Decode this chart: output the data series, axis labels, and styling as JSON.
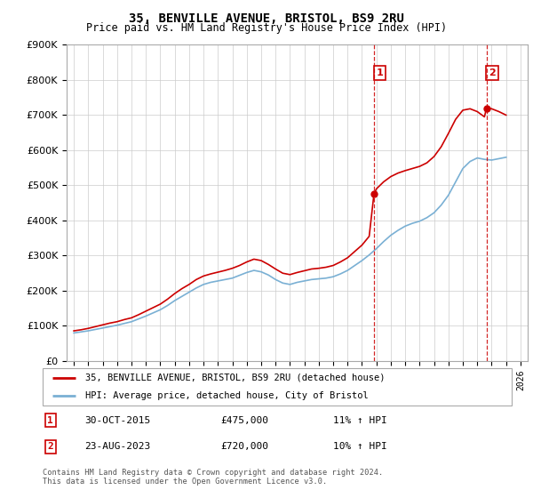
{
  "title": "35, BENVILLE AVENUE, BRISTOL, BS9 2RU",
  "subtitle": "Price paid vs. HM Land Registry's House Price Index (HPI)",
  "footnote": "Contains HM Land Registry data © Crown copyright and database right 2024.\nThis data is licensed under the Open Government Licence v3.0.",
  "legend_line1": "35, BENVILLE AVENUE, BRISTOL, BS9 2RU (detached house)",
  "legend_line2": "HPI: Average price, detached house, City of Bristol",
  "annotation1_label": "1",
  "annotation1_date": "30-OCT-2015",
  "annotation1_price": "£475,000",
  "annotation1_hpi": "11% ↑ HPI",
  "annotation1_year": 2015.83,
  "annotation2_label": "2",
  "annotation2_date": "23-AUG-2023",
  "annotation2_price": "£720,000",
  "annotation2_hpi": "10% ↑ HPI",
  "annotation2_year": 2023.64,
  "red_color": "#cc0000",
  "blue_color": "#7ab0d4",
  "grid_color": "#cccccc",
  "background_color": "#ffffff",
  "ylim": [
    0,
    900000
  ],
  "xlim": [
    1994.5,
    2026.5
  ],
  "hpi_years": [
    1995,
    1995.5,
    1996,
    1996.5,
    1997,
    1997.5,
    1998,
    1998.5,
    1999,
    1999.5,
    2000,
    2000.5,
    2001,
    2001.5,
    2002,
    2002.5,
    2003,
    2003.5,
    2004,
    2004.5,
    2005,
    2005.5,
    2006,
    2006.5,
    2007,
    2007.5,
    2008,
    2008.5,
    2009,
    2009.5,
    2010,
    2010.5,
    2011,
    2011.5,
    2012,
    2012.5,
    2013,
    2013.5,
    2014,
    2014.5,
    2015,
    2015.5,
    2016,
    2016.5,
    2017,
    2017.5,
    2018,
    2018.5,
    2019,
    2019.5,
    2020,
    2020.5,
    2021,
    2021.5,
    2022,
    2022.5,
    2023,
    2023.5,
    2024,
    2024.5,
    2025
  ],
  "hpi_values": [
    80000,
    83000,
    86000,
    90000,
    94000,
    98000,
    102000,
    107000,
    112000,
    120000,
    128000,
    137000,
    146000,
    158000,
    172000,
    184000,
    196000,
    208000,
    218000,
    224000,
    228000,
    232000,
    236000,
    244000,
    252000,
    258000,
    254000,
    245000,
    232000,
    222000,
    218000,
    224000,
    228000,
    232000,
    234000,
    236000,
    240000,
    248000,
    258000,
    272000,
    286000,
    302000,
    320000,
    340000,
    358000,
    372000,
    384000,
    392000,
    398000,
    408000,
    422000,
    444000,
    472000,
    510000,
    548000,
    568000,
    578000,
    574000,
    572000,
    576000,
    580000
  ],
  "red_years": [
    1995,
    1995.5,
    1996,
    1996.5,
    1997,
    1997.5,
    1998,
    1998.5,
    1999,
    1999.5,
    2000,
    2000.5,
    2001,
    2001.5,
    2002,
    2002.5,
    2003,
    2003.5,
    2004,
    2004.5,
    2005,
    2005.5,
    2006,
    2006.5,
    2007,
    2007.5,
    2008,
    2008.5,
    2009,
    2009.5,
    2010,
    2010.5,
    2011,
    2011.5,
    2012,
    2012.5,
    2013,
    2013.5,
    2014,
    2014.5,
    2015,
    2015.5,
    2015.83,
    2016,
    2016.5,
    2017,
    2017.5,
    2018,
    2018.5,
    2019,
    2019.5,
    2020,
    2020.5,
    2021,
    2021.5,
    2022,
    2022.5,
    2023,
    2023.5,
    2023.64,
    2024,
    2024.5,
    2025
  ],
  "red_values": [
    86000,
    89000,
    93000,
    98000,
    103000,
    108000,
    112000,
    118000,
    123000,
    132000,
    142000,
    152000,
    162000,
    176000,
    192000,
    206000,
    218000,
    232000,
    242000,
    248000,
    253000,
    258000,
    264000,
    272000,
    282000,
    290000,
    286000,
    275000,
    262000,
    250000,
    246000,
    252000,
    257000,
    262000,
    264000,
    267000,
    272000,
    282000,
    294000,
    312000,
    330000,
    355000,
    475000,
    490000,
    510000,
    525000,
    535000,
    542000,
    548000,
    554000,
    564000,
    582000,
    610000,
    648000,
    688000,
    714000,
    718000,
    710000,
    695000,
    720000,
    718000,
    710000,
    700000
  ]
}
